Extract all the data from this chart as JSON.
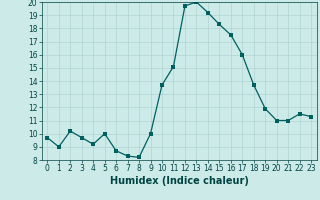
{
  "x": [
    0,
    1,
    2,
    3,
    4,
    5,
    6,
    7,
    8,
    9,
    10,
    11,
    12,
    13,
    14,
    15,
    16,
    17,
    18,
    19,
    20,
    21,
    22,
    23
  ],
  "y": [
    9.7,
    9.0,
    10.2,
    9.7,
    9.2,
    10.0,
    8.7,
    8.3,
    8.2,
    10.0,
    13.7,
    15.1,
    19.7,
    20.0,
    19.2,
    18.3,
    17.5,
    16.0,
    13.7,
    11.9,
    11.0,
    11.0,
    11.5,
    11.3
  ],
  "line_color": "#006060",
  "marker": "s",
  "marker_size": 2.5,
  "background_color": "#cceae8",
  "grid_color": "#b0d4d2",
  "xlabel": "Humidex (Indice chaleur)",
  "ylabel": "",
  "xlim": [
    -0.5,
    23.5
  ],
  "ylim": [
    8,
    20
  ],
  "yticks": [
    8,
    9,
    10,
    11,
    12,
    13,
    14,
    15,
    16,
    17,
    18,
    19,
    20
  ],
  "xticks": [
    0,
    1,
    2,
    3,
    4,
    5,
    6,
    7,
    8,
    9,
    10,
    11,
    12,
    13,
    14,
    15,
    16,
    17,
    18,
    19,
    20,
    21,
    22,
    23
  ],
  "tick_fontsize": 5.5,
  "xlabel_fontsize": 7,
  "label_color": "#004444"
}
